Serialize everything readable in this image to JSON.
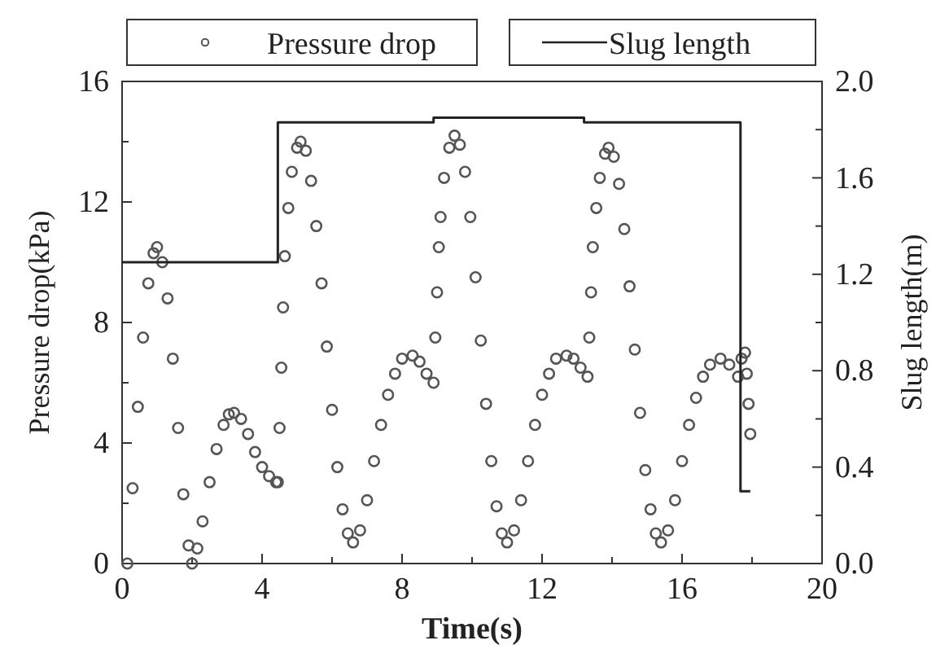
{
  "chart_data": {
    "type": "scatter",
    "xlabel": "Time(s)",
    "ylabel": "Pressure drop(kPa)",
    "y2label": "Slug length(m)",
    "xlim": [
      0,
      20
    ],
    "xticks": [
      0,
      {
        "value": 2,
        "label": null
      },
      4,
      {
        "value": 6,
        "label": null
      },
      8,
      {
        "value": 10,
        "label": null
      },
      12,
      {
        "value": 14,
        "label": null
      },
      16,
      {
        "value": 18,
        "label": null
      },
      20
    ],
    "ylim": [
      0,
      16
    ],
    "yticks": [
      0,
      {
        "value": 2,
        "label": null
      },
      4,
      {
        "value": 6,
        "label": null
      },
      8,
      {
        "value": 10,
        "label": null
      },
      12,
      {
        "value": 14,
        "label": null
      },
      16
    ],
    "y2lim": [
      0,
      2.0
    ],
    "y2ticks": [
      {
        "value": 0,
        "label": "0.0"
      },
      {
        "value": 0.2,
        "label": null
      },
      {
        "value": 0.4,
        "label": "0.4"
      },
      {
        "value": 0.6,
        "label": null
      },
      {
        "value": 0.8,
        "label": "0.8"
      },
      {
        "value": 1.0,
        "label": null
      },
      {
        "value": 1.2,
        "label": "1.2"
      },
      {
        "value": 1.4,
        "label": null
      },
      {
        "value": 1.6,
        "label": "1.6"
      },
      {
        "value": 1.8,
        "label": null
      },
      {
        "value": 2.0,
        "label": "2.0"
      }
    ],
    "legend": "top",
    "grid": false,
    "series": [
      {
        "name": "Pressure drop",
        "marker": "circle",
        "color": "#555555",
        "x": [
          0.15,
          0.3,
          0.45,
          0.6,
          0.75,
          0.9,
          1.0,
          1.15,
          1.3,
          1.45,
          1.6,
          1.75,
          1.9,
          2.0,
          2.15,
          2.3,
          2.5,
          2.7,
          2.9,
          3.05,
          3.2,
          3.4,
          3.6,
          3.8,
          4.0,
          4.2,
          4.4,
          4.45,
          4.5,
          4.55,
          4.6,
          4.65,
          4.75,
          4.85,
          5.0,
          5.1,
          5.25,
          5.4,
          5.55,
          5.7,
          5.85,
          6.0,
          6.15,
          6.3,
          6.45,
          6.6,
          6.8,
          7.0,
          7.2,
          7.4,
          7.6,
          7.8,
          8.0,
          8.3,
          8.5,
          8.7,
          8.9,
          8.95,
          9.0,
          9.05,
          9.1,
          9.2,
          9.35,
          9.5,
          9.65,
          9.8,
          9.95,
          10.1,
          10.25,
          10.4,
          10.55,
          10.7,
          10.85,
          11.0,
          11.2,
          11.4,
          11.6,
          11.8,
          12.0,
          12.2,
          12.4,
          12.7,
          12.9,
          13.1,
          13.3,
          13.35,
          13.4,
          13.45,
          13.55,
          13.65,
          13.8,
          13.9,
          14.05,
          14.2,
          14.35,
          14.5,
          14.65,
          14.8,
          14.95,
          15.1,
          15.25,
          15.4,
          15.6,
          15.8,
          16.0,
          16.2,
          16.4,
          16.6,
          16.8,
          17.1,
          17.35,
          17.6,
          17.7,
          17.8,
          17.85,
          17.9,
          17.95
        ],
        "values": [
          0,
          2.5,
          5.2,
          7.5,
          9.3,
          10.3,
          10.5,
          10.0,
          8.8,
          6.8,
          4.5,
          2.3,
          0.6,
          0,
          0.5,
          1.4,
          2.7,
          3.8,
          4.6,
          4.95,
          5.0,
          4.8,
          4.3,
          3.7,
          3.2,
          2.9,
          2.7,
          2.7,
          4.5,
          6.5,
          8.5,
          10.2,
          11.8,
          13.0,
          13.8,
          14.0,
          13.7,
          12.7,
          11.2,
          9.3,
          7.2,
          5.1,
          3.2,
          1.8,
          1.0,
          0.7,
          1.1,
          2.1,
          3.4,
          4.6,
          5.6,
          6.3,
          6.8,
          6.9,
          6.7,
          6.3,
          6.0,
          7.5,
          9.0,
          10.5,
          11.5,
          12.8,
          13.8,
          14.2,
          13.9,
          13.0,
          11.5,
          9.5,
          7.4,
          5.3,
          3.4,
          1.9,
          1.0,
          0.7,
          1.1,
          2.1,
          3.4,
          4.6,
          5.6,
          6.3,
          6.8,
          6.9,
          6.8,
          6.5,
          6.2,
          7.5,
          9.0,
          10.5,
          11.8,
          12.8,
          13.6,
          13.8,
          13.5,
          12.6,
          11.1,
          9.2,
          7.1,
          5.0,
          3.1,
          1.8,
          1.0,
          0.7,
          1.1,
          2.1,
          3.4,
          4.6,
          5.5,
          6.2,
          6.6,
          6.8,
          6.6,
          6.2,
          6.8,
          7.0,
          6.3,
          5.3,
          4.3
        ]
      },
      {
        "name": "Slug length",
        "type": "step",
        "axis": "y2",
        "marker": "none",
        "line_style": "solid",
        "color": "#222222",
        "x": [
          0,
          4.45,
          8.9,
          13.2,
          17.67,
          17.95
        ],
        "values": [
          1.25,
          1.83,
          1.85,
          1.83,
          0.3,
          0.3
        ]
      }
    ]
  }
}
